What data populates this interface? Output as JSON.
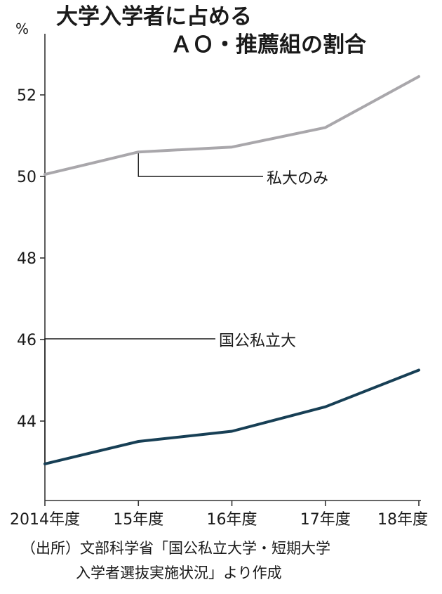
{
  "chart_data": {
    "type": "line",
    "title_line1": "大学入学者に占める",
    "title_line2": "ＡＯ・推薦組の割合",
    "unit": "%",
    "x": [
      "2014年度",
      "15年度",
      "16年度",
      "17年度",
      "18年度"
    ],
    "ylim": [
      42,
      54
    ],
    "yticks": [
      44,
      46,
      48,
      50,
      52
    ],
    "grid": false,
    "series": [
      {
        "name": "私大のみ",
        "values": [
          50.05,
          50.6,
          50.72,
          51.2,
          52.45
        ],
        "color": "#a9a7ab"
      },
      {
        "name": "国公私立大",
        "values": [
          42.95,
          43.5,
          43.75,
          44.35,
          45.25
        ],
        "color": "#173f55"
      }
    ],
    "source_line1": "（出所）文部科学省「国公私立大学・短期大学",
    "source_line2": "入学者選抜実施状況」より作成"
  }
}
